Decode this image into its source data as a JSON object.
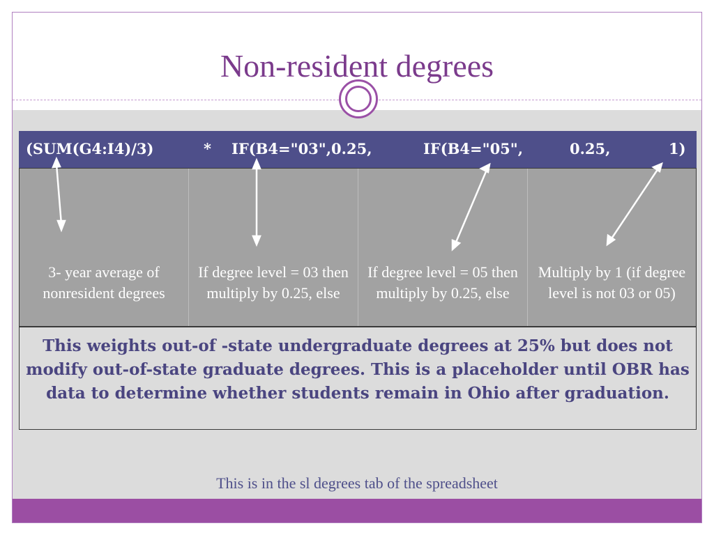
{
  "slide": {
    "title": "Non-resident degrees",
    "formula": {
      "part1": "(SUM(G4:I4)/3)",
      "part2": "*",
      "part3": "IF(B4=\"03\",0.25,",
      "part4": "IF(B4=\"05\",",
      "part5": "0.25,",
      "part6": "1)"
    },
    "explanations": [
      "3- year average of nonresident degrees",
      "If degree level = 03 then multiply by 0.25, else",
      "If degree level = 05 then multiply by 0.25, else",
      "Multiply by 1 (if degree level is not 03 or 05)"
    ],
    "note": "This weights out-of -state undergraduate degrees at 25% but does not modify out-of-state graduate degrees.  This is a placeholder until OBR has data to determine whether students remain in Ohio after graduation.",
    "footer": "This is in the sl degrees tab of the spreadsheet"
  },
  "colors": {
    "title": "#7b3b8c",
    "formula_bar": "#4e4f8a",
    "cells": "#a2a2a2",
    "note_text": "#4a4580",
    "bottom_band": "#9b4ea3"
  }
}
